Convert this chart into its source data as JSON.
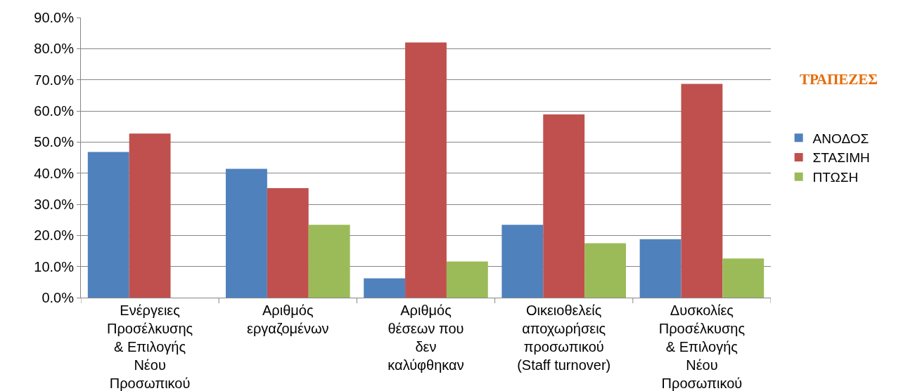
{
  "chart_data": {
    "type": "bar",
    "title": "ΤΡΑΠΕΖΕΣ",
    "categories": [
      "Ενέργειες Προσέλκυσης & Επιλογής Νέου Προσωπικού",
      "Αριθμός εργαζομένων",
      "Αριθμός θέσεων που δεν καλύφθηκαν",
      "Οικειοθελείς αποχωρήσεις προσωπικού (Staff turnover)",
      "Δυσκολίες Προσέλκυσης & Επιλογής Νέου Προσωπικού"
    ],
    "series": [
      {
        "name": "ΑΝΟΔΟΣ",
        "color": "#4f81bd",
        "values": [
          46.8,
          41.4,
          6.2,
          23.4,
          18.8
        ]
      },
      {
        "name": "ΣΤΑΣΙΜΗ",
        "color": "#c0504d",
        "values": [
          52.7,
          35.2,
          82.0,
          58.9,
          68.7
        ]
      },
      {
        "name": "ΠΤΩΣΗ",
        "color": "#9bbb59",
        "values": [
          null,
          23.4,
          11.6,
          17.5,
          12.6
        ]
      }
    ],
    "ylim": [
      0,
      90
    ],
    "yticks": [
      {
        "value": 0,
        "label": "0.0%"
      },
      {
        "value": 10,
        "label": "10.0%"
      },
      {
        "value": 20,
        "label": "20.0%"
      },
      {
        "value": 30,
        "label": "30.0%"
      },
      {
        "value": 40,
        "label": "40.0%"
      },
      {
        "value": 50,
        "label": "50.0%"
      },
      {
        "value": 60,
        "label": "60.0%"
      },
      {
        "value": 70,
        "label": "70.0%"
      },
      {
        "value": 80,
        "label": "80.0%"
      },
      {
        "value": 90,
        "label": "90.0%"
      }
    ],
    "grid": "y",
    "legend": "right"
  }
}
